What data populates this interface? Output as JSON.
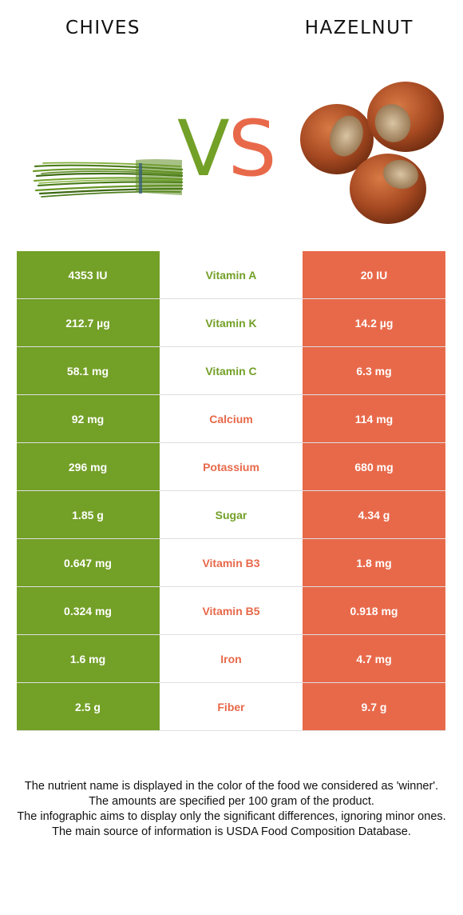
{
  "left_food": {
    "name": "CHIVES",
    "color": "#73a027"
  },
  "right_food": {
    "name": "HAZELNUT",
    "color": "#e8694a"
  },
  "vs": {
    "v": "V",
    "s": "S"
  },
  "rows": [
    {
      "nutrient": "Vitamin A",
      "left": "4353 IU",
      "right": "20 IU",
      "winner": "left"
    },
    {
      "nutrient": "Vitamin K",
      "left": "212.7 µg",
      "right": "14.2 µg",
      "winner": "left"
    },
    {
      "nutrient": "Vitamin C",
      "left": "58.1 mg",
      "right": "6.3 mg",
      "winner": "left"
    },
    {
      "nutrient": "Calcium",
      "left": "92 mg",
      "right": "114 mg",
      "winner": "right"
    },
    {
      "nutrient": "Potassium",
      "left": "296 mg",
      "right": "680 mg",
      "winner": "right"
    },
    {
      "nutrient": "Sugar",
      "left": "1.85 g",
      "right": "4.34 g",
      "winner": "left"
    },
    {
      "nutrient": "Vitamin B3",
      "left": "0.647 mg",
      "right": "1.8 mg",
      "winner": "right"
    },
    {
      "nutrient": "Vitamin B5",
      "left": "0.324 mg",
      "right": "0.918 mg",
      "winner": "right"
    },
    {
      "nutrient": "Iron",
      "left": "1.6 mg",
      "right": "4.7 mg",
      "winner": "right"
    },
    {
      "nutrient": "Fiber",
      "left": "2.5 g",
      "right": "9.7 g",
      "winner": "right"
    }
  ],
  "footer": {
    "line1": "The nutrient name is displayed in the color of the food we considered as 'winner'.",
    "line2": "The amounts are specified per 100 gram of the product.",
    "line3": "The infographic aims to display only the significant differences, ignoring minor ones.",
    "line4": "The main source of information is USDA Food Composition Database."
  }
}
